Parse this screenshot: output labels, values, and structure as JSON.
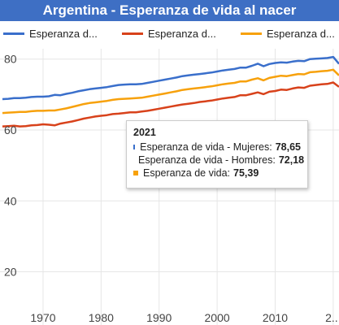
{
  "title": "Argentina - Esperanza de vida al nacer",
  "legend": [
    {
      "label": "Esperanza d...",
      "color": "#3a6fcb"
    },
    {
      "label": "Esperanza d...",
      "color": "#d8421b"
    },
    {
      "label": "Esperanza d...",
      "color": "#f7a10c"
    }
  ],
  "tooltip": {
    "year": "2021",
    "rows": [
      {
        "label": "Esperanza de vida - Mujeres:",
        "value": "78,65",
        "color": "#3a6fcb"
      },
      {
        "label": "Esperanza de vida - Hombres:",
        "value": "72,18",
        "color": "#d8421b"
      },
      {
        "label": "Esperanza de vida:",
        "value": "75,39",
        "color": "#f7a10c"
      }
    ]
  },
  "chart_data": {
    "type": "line",
    "title": "Argentina - Esperanza de vida al nacer",
    "xlabel": "",
    "ylabel": "",
    "xlim": [
      1963,
      2021
    ],
    "ylim": [
      5,
      82
    ],
    "x_ticks": [
      "1970",
      "1980",
      "1990",
      "2000",
      "2010",
      "2..."
    ],
    "x_tick_values": [
      1970,
      1980,
      1990,
      2000,
      2010,
      2020
    ],
    "y_ticks": [
      "20",
      "40",
      "60",
      "80"
    ],
    "y_tick_values": [
      20,
      40,
      60,
      80
    ],
    "grid": true,
    "legend_position": "top",
    "x": [
      1963,
      1964,
      1965,
      1966,
      1967,
      1968,
      1969,
      1970,
      1971,
      1972,
      1973,
      1974,
      1975,
      1976,
      1977,
      1978,
      1979,
      1980,
      1981,
      1982,
      1983,
      1984,
      1985,
      1986,
      1987,
      1988,
      1989,
      1990,
      1991,
      1992,
      1993,
      1994,
      1995,
      1996,
      1997,
      1998,
      1999,
      2000,
      2001,
      2002,
      2003,
      2004,
      2005,
      2006,
      2007,
      2008,
      2009,
      2010,
      2011,
      2012,
      2013,
      2014,
      2015,
      2016,
      2017,
      2018,
      2019,
      2020,
      2021
    ],
    "series": [
      {
        "name": "Esperanza de vida - Mujeres",
        "color": "#3a6fcb",
        "values": [
          68.7,
          68.8,
          69.0,
          69.0,
          69.1,
          69.3,
          69.4,
          69.4,
          69.5,
          69.9,
          69.8,
          70.2,
          70.5,
          70.9,
          71.2,
          71.5,
          71.7,
          71.9,
          72.1,
          72.4,
          72.7,
          72.8,
          72.9,
          72.9,
          73.0,
          73.3,
          73.6,
          73.9,
          74.2,
          74.5,
          74.8,
          75.2,
          75.4,
          75.6,
          75.8,
          76.0,
          76.2,
          76.5,
          76.8,
          77.0,
          77.2,
          77.6,
          77.6,
          78.1,
          78.7,
          78.0,
          78.6,
          78.9,
          79.1,
          79.0,
          79.3,
          79.5,
          79.4,
          80.0,
          80.1,
          80.2,
          80.3,
          80.6,
          78.65
        ]
      },
      {
        "name": "Esperanza de vida - Hombres",
        "color": "#d8421b",
        "values": [
          61.0,
          61.1,
          61.2,
          61.0,
          61.1,
          61.3,
          61.4,
          61.6,
          61.5,
          61.3,
          61.8,
          62.1,
          62.4,
          62.8,
          63.2,
          63.5,
          63.8,
          64.0,
          64.2,
          64.5,
          64.6,
          64.8,
          65.0,
          65.0,
          65.2,
          65.4,
          65.7,
          66.0,
          66.3,
          66.6,
          66.9,
          67.2,
          67.4,
          67.6,
          67.9,
          68.1,
          68.3,
          68.6,
          68.9,
          69.1,
          69.3,
          69.8,
          69.8,
          70.2,
          70.6,
          70.1,
          70.8,
          71.0,
          71.4,
          71.3,
          71.7,
          72.0,
          71.9,
          72.5,
          72.7,
          72.9,
          73.0,
          73.4,
          72.18
        ]
      },
      {
        "name": "Esperanza de vida",
        "color": "#f7a10c",
        "values": [
          64.8,
          64.9,
          65.0,
          65.1,
          65.1,
          65.3,
          65.4,
          65.4,
          65.5,
          65.5,
          65.8,
          66.1,
          66.5,
          66.9,
          67.3,
          67.6,
          67.8,
          68.0,
          68.2,
          68.5,
          68.7,
          68.8,
          68.9,
          69.0,
          69.1,
          69.4,
          69.7,
          70.0,
          70.3,
          70.6,
          70.9,
          71.3,
          71.5,
          71.7,
          71.9,
          72.1,
          72.3,
          72.6,
          72.9,
          73.1,
          73.3,
          73.7,
          73.7,
          74.2,
          74.6,
          74.0,
          74.7,
          75.0,
          75.3,
          75.2,
          75.5,
          75.8,
          75.7,
          76.3,
          76.4,
          76.6,
          76.7,
          77.0,
          75.39
        ]
      }
    ]
  }
}
